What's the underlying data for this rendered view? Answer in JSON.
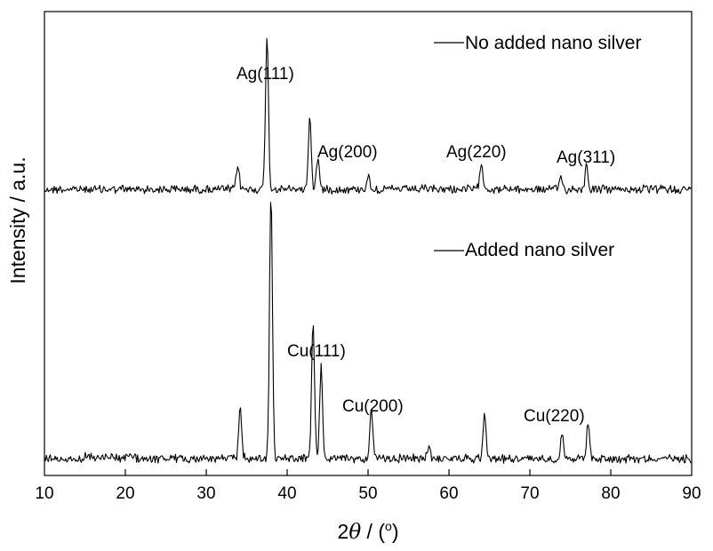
{
  "chart_data": {
    "type": "line",
    "xlabel_prefix": "2",
    "xlabel_symbol": "θ",
    "xlabel_suffix": " / (",
    "xlabel_unit": "o",
    "xlabel_close": ")",
    "ylabel": "Intensity / a.u.",
    "xlim": [
      10,
      90
    ],
    "xticks": [
      10,
      20,
      30,
      40,
      50,
      60,
      70,
      80,
      90
    ],
    "y_ticks_shown": false,
    "grid": false,
    "series": [
      {
        "name": "No added nano silver",
        "peaks": [
          {
            "x": 33.9,
            "y": 0.09
          },
          {
            "x": 37.5,
            "y": 0.58
          },
          {
            "x": 42.8,
            "y": 0.27
          },
          {
            "x": 43.8,
            "y": 0.12
          },
          {
            "x": 50.0,
            "y": 0.05
          },
          {
            "x": 64.0,
            "y": 0.11
          },
          {
            "x": 73.8,
            "y": 0.05
          },
          {
            "x": 77.0,
            "y": 0.09
          }
        ]
      },
      {
        "name": "Added nano silver",
        "peaks": [
          {
            "x": 34.2,
            "y": 0.2
          },
          {
            "x": 38.0,
            "y": 1.0
          },
          {
            "x": 43.2,
            "y": 0.5
          },
          {
            "x": 44.2,
            "y": 0.34
          },
          {
            "x": 50.4,
            "y": 0.18
          },
          {
            "x": 57.5,
            "y": 0.05
          },
          {
            "x": 64.4,
            "y": 0.18
          },
          {
            "x": 74.0,
            "y": 0.1
          },
          {
            "x": 77.2,
            "y": 0.14
          }
        ]
      }
    ],
    "annotations": [
      {
        "text": "Ag(111)",
        "x": 37.5
      },
      {
        "text": "Ag(200)",
        "x": 44.5
      },
      {
        "text": "Ag(220)",
        "x": 63.5
      },
      {
        "text": "Ag(311)",
        "x": 76.5
      },
      {
        "text": "Cu(111)",
        "x": 43.5
      },
      {
        "text": "Cu(200)",
        "x": 50.6
      },
      {
        "text": "Cu(220)",
        "x": 74.2
      }
    ]
  }
}
